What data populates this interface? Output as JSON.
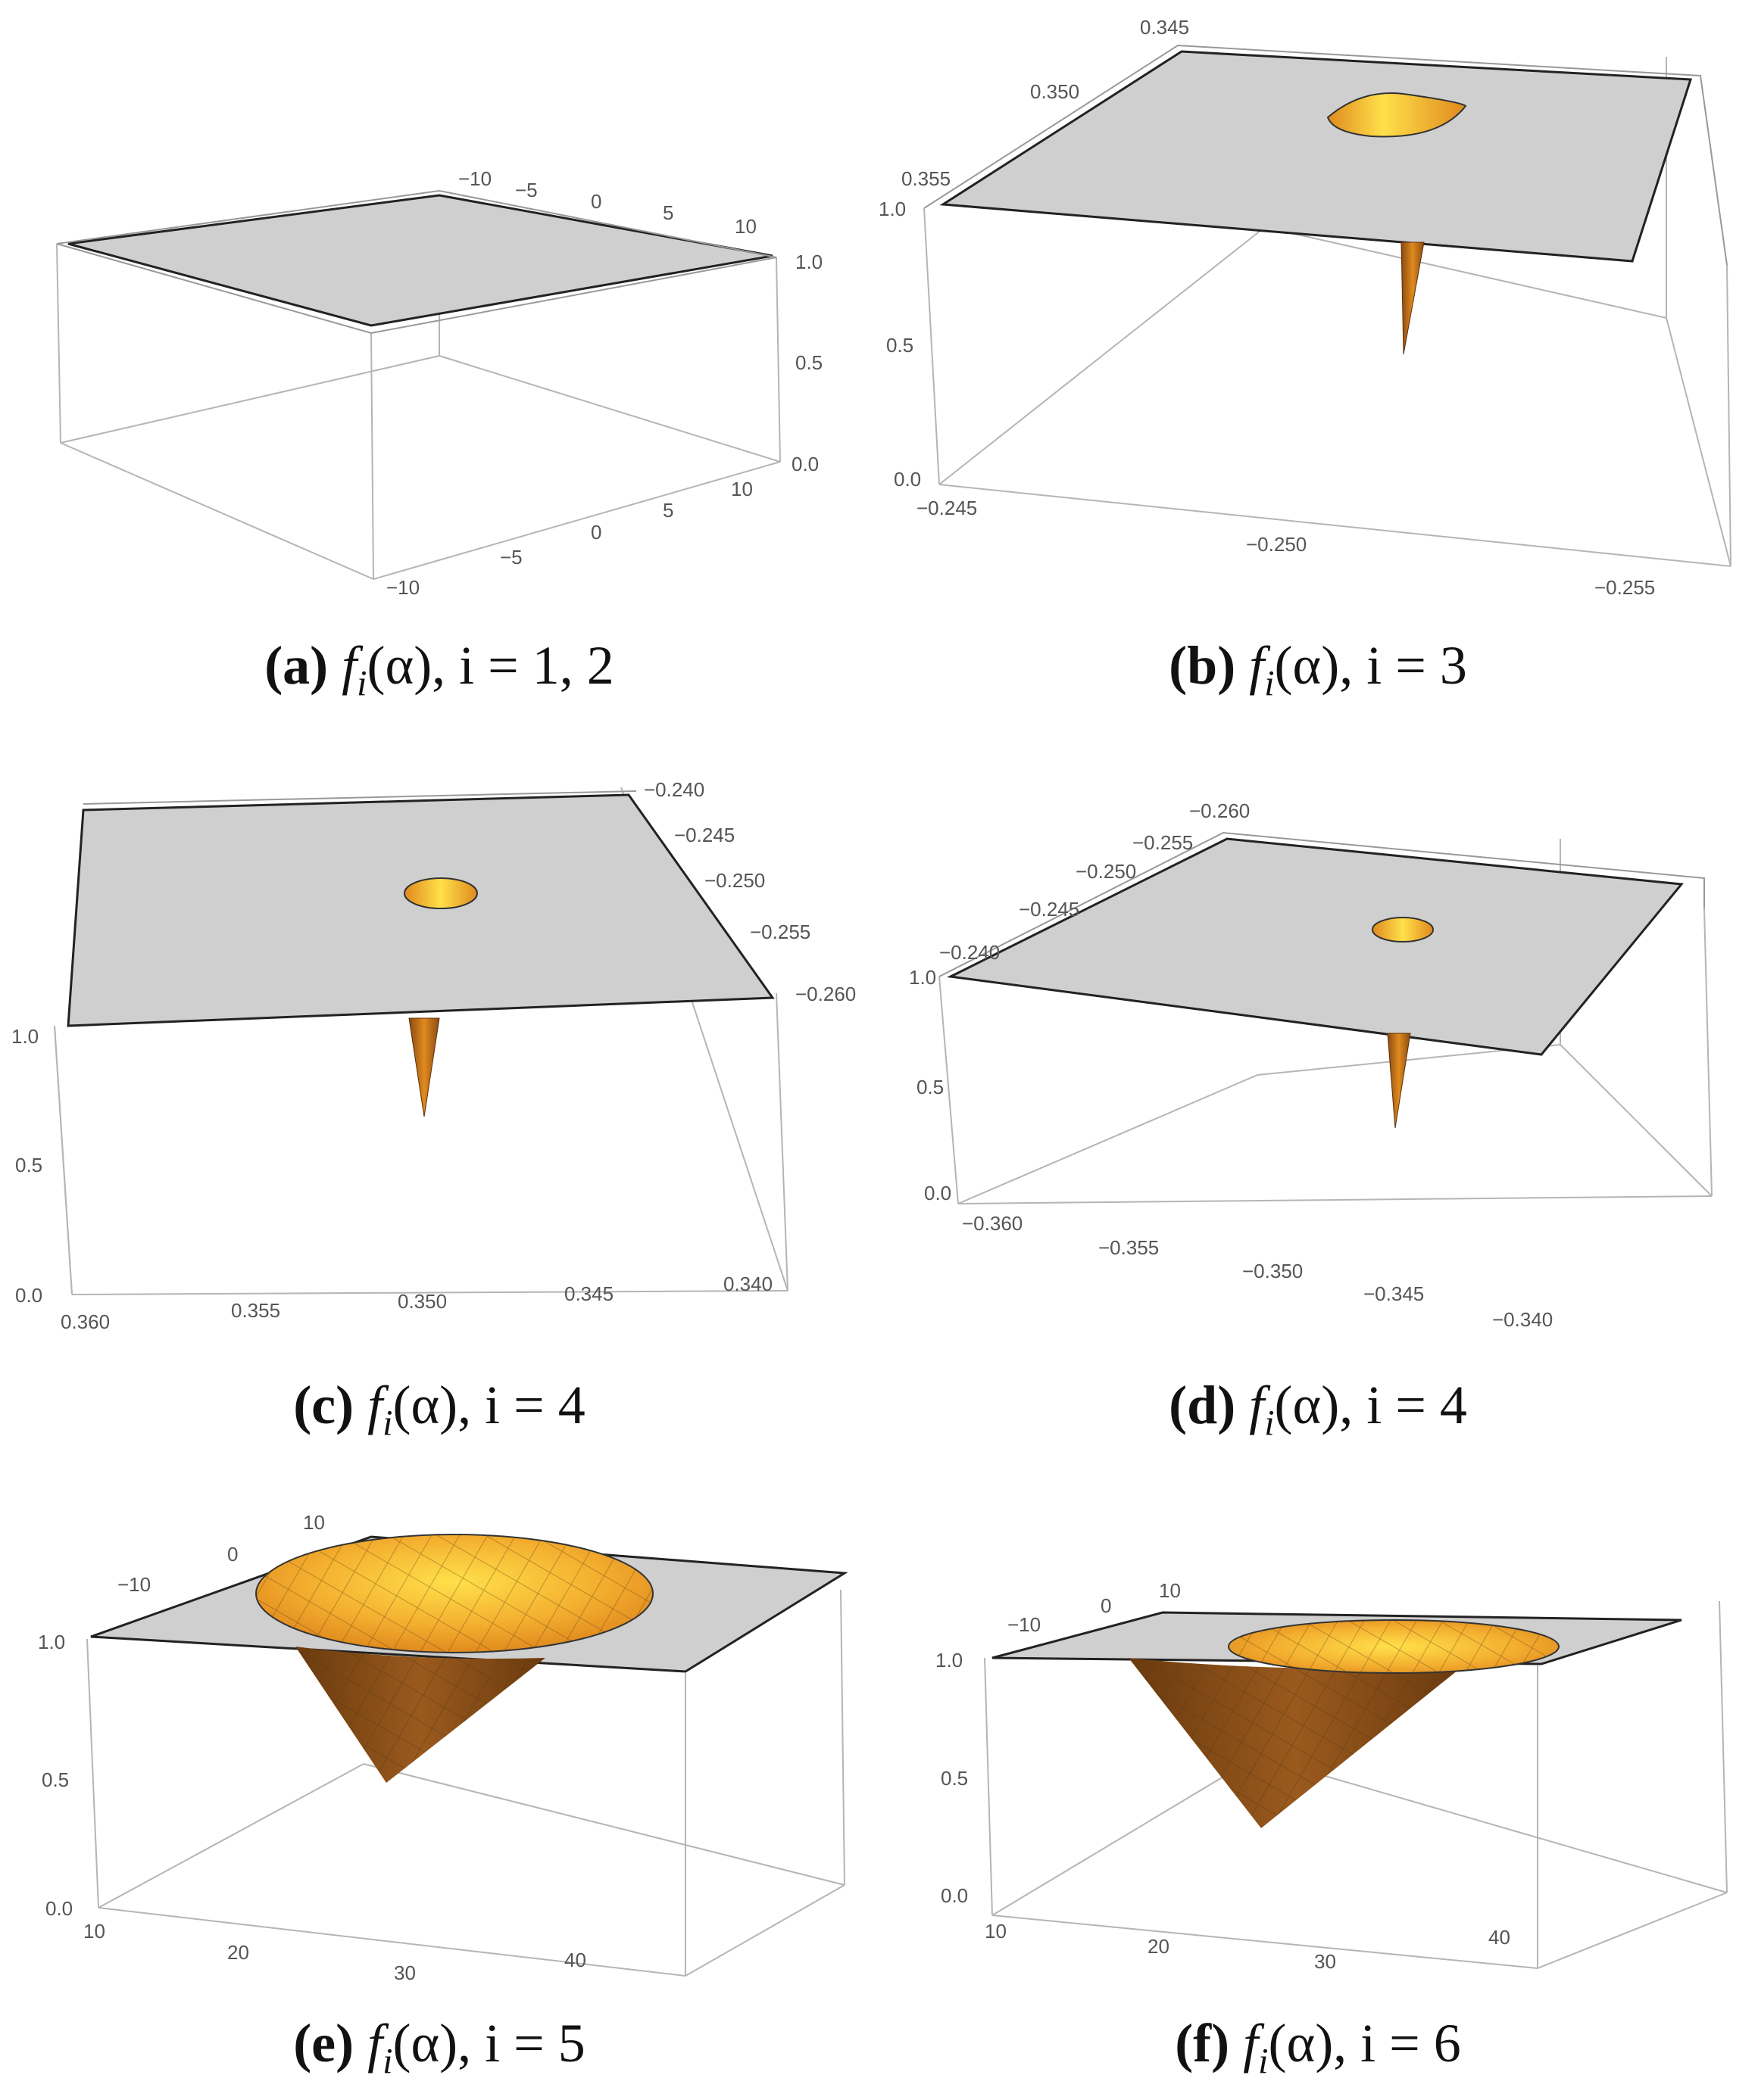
{
  "panels": [
    {
      "label": "(a)",
      "caption": {
        "lbl": "(a)",
        "fn": "f",
        "sub": "i",
        "rest": "(α), i = 1, 2"
      },
      "axes": {
        "back": [
          "−10",
          "−5",
          "0",
          "5",
          "10"
        ],
        "front": [
          "−10",
          "−5",
          "0",
          "5",
          "10"
        ],
        "z": [
          "1.0",
          "0.5",
          "0.0"
        ]
      }
    },
    {
      "label": "(b)",
      "caption": {
        "lbl": "(b)",
        "fn": "f",
        "sub": "i",
        "rest": "(α), i = 3"
      },
      "axes": {
        "left": [
          "0.345",
          "0.350",
          "0.355"
        ],
        "front": [
          "−0.245",
          "−0.250",
          "−0.255"
        ],
        "z": [
          "1.0",
          "0.5",
          "0.0"
        ]
      }
    },
    {
      "label": "(c)",
      "caption": {
        "lbl": "(c)",
        "fn": "f",
        "sub": "i",
        "rest": "(α), i = 4"
      },
      "axes": {
        "right": [
          "−0.240",
          "−0.245",
          "−0.250",
          "−0.255",
          "−0.260"
        ],
        "front": [
          "0.360",
          "0.355",
          "0.350",
          "0.345",
          "0.340"
        ],
        "z": [
          "1.0",
          "0.5",
          "0.0"
        ]
      }
    },
    {
      "label": "(d)",
      "caption": {
        "lbl": "(d)",
        "fn": "f",
        "sub": "i",
        "rest": "(α), i = 4"
      },
      "axes": {
        "left": [
          "−0.260",
          "−0.255",
          "−0.250",
          "−0.245",
          "−0.240"
        ],
        "front": [
          "−0.360",
          "−0.355",
          "−0.350",
          "−0.345",
          "−0.340"
        ],
        "z": [
          "1.0",
          "0.5",
          "0.0"
        ]
      }
    },
    {
      "label": "(e)",
      "caption": {
        "lbl": "(e)",
        "fn": "f",
        "sub": "i",
        "rest": "(α), i = 5"
      },
      "axes": {
        "left": [
          "10",
          "0",
          "−10"
        ],
        "front": [
          "10",
          "20",
          "30",
          "40"
        ],
        "z": [
          "1.0",
          "0.5",
          "0.0"
        ]
      }
    },
    {
      "label": "(f)",
      "caption": {
        "lbl": "(f)",
        "fn": "f",
        "sub": "i",
        "rest": "(α), i = 6"
      },
      "axes": {
        "left": [
          "10",
          "0",
          "−10"
        ],
        "front": [
          "10",
          "20",
          "30",
          "40"
        ],
        "z": [
          "1.0",
          "0.5",
          "0.0"
        ]
      }
    }
  ],
  "colors": {
    "plane": "#cfcfcf",
    "box": "#b0b0b0",
    "surface_dark": "#8a4a12",
    "surface_mid": "#e08a1e",
    "surface_light": "#ffe04a"
  }
}
